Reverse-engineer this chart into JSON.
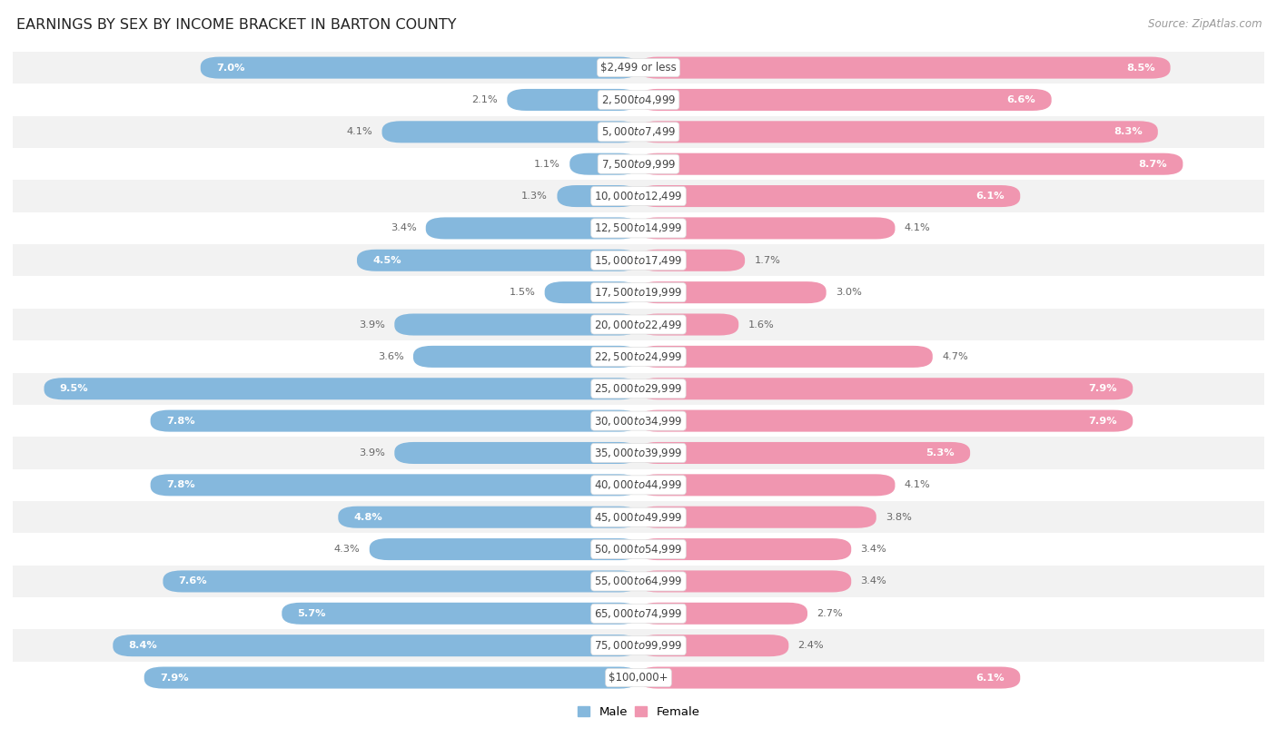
{
  "title": "EARNINGS BY SEX BY INCOME BRACKET IN BARTON COUNTY",
  "source": "Source: ZipAtlas.com",
  "categories": [
    "$2,499 or less",
    "$2,500 to $4,999",
    "$5,000 to $7,499",
    "$7,500 to $9,999",
    "$10,000 to $12,499",
    "$12,500 to $14,999",
    "$15,000 to $17,499",
    "$17,500 to $19,999",
    "$20,000 to $22,499",
    "$22,500 to $24,999",
    "$25,000 to $29,999",
    "$30,000 to $34,999",
    "$35,000 to $39,999",
    "$40,000 to $44,999",
    "$45,000 to $49,999",
    "$50,000 to $54,999",
    "$55,000 to $64,999",
    "$65,000 to $74,999",
    "$75,000 to $99,999",
    "$100,000+"
  ],
  "male_values": [
    7.0,
    2.1,
    4.1,
    1.1,
    1.3,
    3.4,
    4.5,
    1.5,
    3.9,
    3.6,
    9.5,
    7.8,
    3.9,
    7.8,
    4.8,
    4.3,
    7.6,
    5.7,
    8.4,
    7.9
  ],
  "female_values": [
    8.5,
    6.6,
    8.3,
    8.7,
    6.1,
    4.1,
    1.7,
    3.0,
    1.6,
    4.7,
    7.9,
    7.9,
    5.3,
    4.1,
    3.8,
    3.4,
    3.4,
    2.7,
    2.4,
    6.1
  ],
  "male_color": "#85b8dd",
  "female_color": "#f096b0",
  "bg_color": "#ffffff",
  "row_color_even": "#f2f2f2",
  "row_color_odd": "#ffffff",
  "bar_height": 0.68,
  "xlim": 10.0,
  "label_inside_threshold_male": 4.5,
  "label_inside_threshold_female": 5.0
}
